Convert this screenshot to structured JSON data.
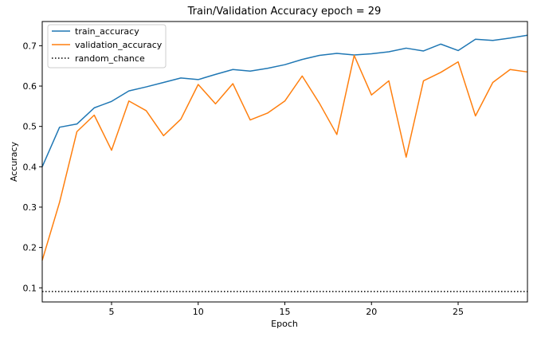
{
  "chart_data": {
    "type": "line",
    "title": "Train/Validation Accuracy epoch = 29",
    "xlabel": "Epoch",
    "ylabel": "Accuracy",
    "xlim": [
      1,
      29
    ],
    "ylim": [
      0.065,
      0.76
    ],
    "xticks": [
      5,
      10,
      15,
      20,
      25
    ],
    "yticks": [
      0.1,
      0.2,
      0.3,
      0.4,
      0.5,
      0.6,
      0.7
    ],
    "grid": false,
    "legend_position": "top-left",
    "x": [
      1,
      2,
      3,
      4,
      5,
      6,
      7,
      8,
      9,
      10,
      11,
      12,
      13,
      14,
      15,
      16,
      17,
      18,
      19,
      20,
      21,
      22,
      23,
      24,
      25,
      26,
      27,
      28,
      29
    ],
    "series": [
      {
        "name": "train_accuracy",
        "color": "#1f77b4",
        "style": "solid",
        "values": [
          0.4,
          0.498,
          0.506,
          0.546,
          0.562,
          0.588,
          0.598,
          0.609,
          0.62,
          0.616,
          0.629,
          0.641,
          0.637,
          0.644,
          0.653,
          0.666,
          0.676,
          0.681,
          0.677,
          0.68,
          0.685,
          0.694,
          0.687,
          0.704,
          0.688,
          0.716,
          0.713,
          0.719,
          0.726
        ]
      },
      {
        "name": "validation_accuracy",
        "color": "#ff7f0e",
        "style": "solid",
        "values": [
          0.168,
          0.312,
          0.487,
          0.528,
          0.441,
          0.563,
          0.539,
          0.477,
          0.518,
          0.604,
          0.556,
          0.606,
          0.516,
          0.533,
          0.563,
          0.625,
          0.557,
          0.48,
          0.676,
          0.578,
          0.613,
          0.424,
          0.613,
          0.634,
          0.66,
          0.526,
          0.609,
          0.641,
          0.635
        ]
      },
      {
        "name": "random_chance",
        "color": "#000000",
        "style": "dotted",
        "values": [
          0.0909,
          0.0909,
          0.0909,
          0.0909,
          0.0909,
          0.0909,
          0.0909,
          0.0909,
          0.0909,
          0.0909,
          0.0909,
          0.0909,
          0.0909,
          0.0909,
          0.0909,
          0.0909,
          0.0909,
          0.0909,
          0.0909,
          0.0909,
          0.0909,
          0.0909,
          0.0909,
          0.0909,
          0.0909,
          0.0909,
          0.0909,
          0.0909,
          0.0909
        ]
      }
    ]
  }
}
